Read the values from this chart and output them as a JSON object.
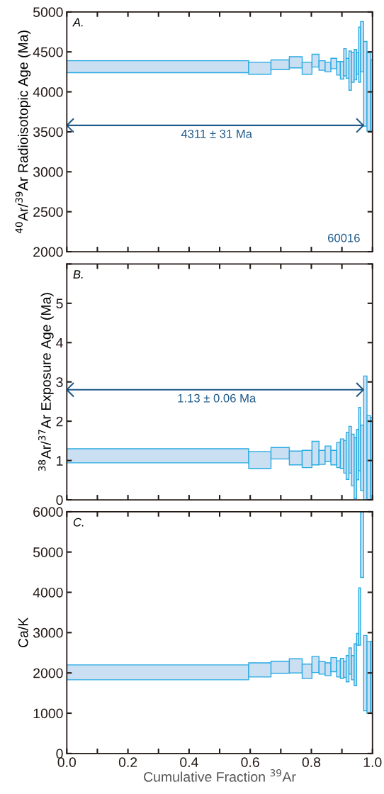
{
  "chart_data": [
    {
      "type": "bar",
      "title": "A.",
      "ylabel": "$^{40}$Ar/$^{39}$Ar Radioisotopic Age (Ma)",
      "tick_labels": "y",
      "xlim": [
        0.0,
        1.0
      ],
      "xticks": [
        {
          "value": 0.0,
          "label": null
        },
        {
          "value": 0.1,
          "label": null
        },
        {
          "value": 0.2,
          "label": null
        },
        {
          "value": 0.3,
          "label": null
        },
        {
          "value": 0.4,
          "label": null
        },
        {
          "value": 0.5,
          "label": null
        },
        {
          "value": 0.6,
          "label": null
        },
        {
          "value": 0.7,
          "label": null
        },
        {
          "value": 0.8,
          "label": null
        },
        {
          "value": 0.9,
          "label": null
        },
        {
          "value": 1.0,
          "label": null
        }
      ],
      "ylim": [
        2000,
        5000
      ],
      "yticks": [
        2000,
        2500,
        3000,
        3500,
        4000,
        4500,
        5000
      ],
      "series": [
        {
          "color": "#29abe2",
          "x": [
            0.2975,
            0.6315,
            0.698,
            0.749,
            0.786,
            0.8135,
            0.835,
            0.8545,
            0.8735,
            0.889,
            0.9005,
            0.91,
            0.9185,
            0.927,
            0.9355,
            0.944,
            0.9515,
            0.958,
            0.966,
            0.9765,
            0.988,
            0.997
          ],
          "base": [
            4240,
            4220,
            4280,
            4300,
            4220,
            4310,
            4270,
            4250,
            4290,
            4210,
            4160,
            4200,
            4170,
            4020,
            4120,
            4150,
            4220,
            4120,
            4250,
            3570,
            3510,
            3520
          ],
          "values": [
            150,
            150,
            120,
            140,
            150,
            160,
            120,
            120,
            130,
            170,
            220,
            340,
            250,
            490,
            370,
            380,
            270,
            690,
            630,
            1060,
            980,
            880
          ]
        },
        {
          "type": "line",
          "color": "#1f5a8a",
          "x": [
            0.0,
            0.97
          ],
          "values": [
            3580,
            3580
          ]
        }
      ],
      "annotations": [
        {
          "text": "4311 ± 31 Ma",
          "x": 0.49,
          "y": 3580
        },
        "60016"
      ]
    },
    {
      "type": "bar",
      "title": "B.",
      "ylabel": "$^{38}$Ar/$^{37}$Ar Exposure Age (Ma)",
      "tick_labels": "y",
      "xlim": [
        0.0,
        1.0
      ],
      "xticks": [
        {
          "value": 0.0,
          "label": null
        },
        {
          "value": 0.1,
          "label": null
        },
        {
          "value": 0.2,
          "label": null
        },
        {
          "value": 0.3,
          "label": null
        },
        {
          "value": 0.4,
          "label": null
        },
        {
          "value": 0.5,
          "label": null
        },
        {
          "value": 0.6,
          "label": null
        },
        {
          "value": 0.7,
          "label": null
        },
        {
          "value": 0.8,
          "label": null
        },
        {
          "value": 0.9,
          "label": null
        },
        {
          "value": 1.0,
          "label": null
        }
      ],
      "ylim": [
        0,
        6
      ],
      "yticks": [
        0,
        1,
        2,
        3,
        4,
        5,
        {
          "value": 6,
          "label": null
        }
      ],
      "series": [
        {
          "color": "#29abe2",
          "x": [
            0.2975,
            0.6315,
            0.698,
            0.749,
            0.786,
            0.8135,
            0.835,
            0.8545,
            0.8735,
            0.889,
            0.9005,
            0.91,
            0.9185,
            0.927,
            0.9355,
            0.944,
            0.9515,
            0.958,
            0.966,
            0.9765,
            0.988,
            0.997
          ],
          "base": [
            0.94,
            0.8,
            1.04,
            0.89,
            0.82,
            0.89,
            0.9,
            0.98,
            0.89,
            0.82,
            0.8,
            0.68,
            0.52,
            0.68,
            0.36,
            0.03,
            0.51,
            0.74,
            0.24,
            0.0,
            0.0,
            0.0
          ],
          "values": [
            0.36,
            0.43,
            0.29,
            0.35,
            0.44,
            0.6,
            0.36,
            0.39,
            0.37,
            0.64,
            0.75,
            0.83,
            1.19,
            1.19,
            1.31,
            1.55,
            1.28,
            1.61,
            1.66,
            3.15,
            2.14,
            2.1
          ]
        },
        {
          "type": "line",
          "color": "#1f5a8a",
          "x": [
            0.0,
            0.97
          ],
          "values": [
            2.8,
            2.8
          ]
        }
      ],
      "annotations": [
        {
          "text": "1.13 ± 0.06 Ma",
          "x": 0.49,
          "y": 2.8
        }
      ]
    },
    {
      "type": "bar",
      "title": "C.",
      "ylabel": "Ca/K",
      "xlabel": "Cumulative Fraction $^{39}$Ar",
      "xlim": [
        0.0,
        1.0
      ],
      "xticks": [
        {
          "value": 0.0,
          "label": "0.0"
        },
        {
          "value": 0.1,
          "label": null
        },
        {
          "value": 0.2,
          "label": "0.2"
        },
        {
          "value": 0.3,
          "label": null
        },
        {
          "value": 0.4,
          "label": "0.4"
        },
        {
          "value": 0.5,
          "label": null
        },
        {
          "value": 0.6,
          "label": "0.6"
        },
        {
          "value": 0.7,
          "label": null
        },
        {
          "value": 0.8,
          "label": "0.8"
        },
        {
          "value": 0.9,
          "label": null
        },
        {
          "value": 1.0,
          "label": "1.0"
        }
      ],
      "ylim": [
        0,
        6000
      ],
      "yticks": [
        0,
        1000,
        2000,
        3000,
        4000,
        5000,
        6000
      ],
      "series": [
        {
          "color": "#29abe2",
          "x": [
            0.2975,
            0.6315,
            0.698,
            0.749,
            0.786,
            0.8135,
            0.835,
            0.8545,
            0.8735,
            0.889,
            0.9005,
            0.91,
            0.9185,
            0.927,
            0.9355,
            0.944,
            0.9515,
            0.958,
            0.966,
            0.9765,
            0.988,
            0.997
          ],
          "base": [
            1830,
            1900,
            1990,
            2000,
            1860,
            2010,
            1970,
            1930,
            2030,
            1900,
            1860,
            1890,
            1780,
            1970,
            1830,
            1680,
            2690,
            2690,
            4370,
            1060,
            1000,
            1000
          ],
          "values": [
            370,
            350,
            300,
            350,
            360,
            400,
            310,
            320,
            350,
            400,
            500,
            400,
            650,
            650,
            600,
            1040,
            290,
            1420,
            1620,
            1870,
            1780,
            1780
          ]
        }
      ]
    }
  ]
}
